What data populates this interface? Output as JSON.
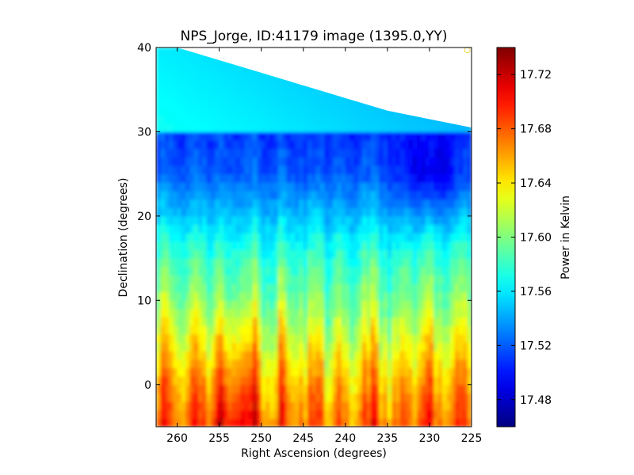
{
  "chart_data": {
    "type": "heatmap",
    "title": "NPS_Jorge, ID:41179 image (1395.0,YY)",
    "xlabel": "Right Ascension (degrees)",
    "ylabel": "Declination (degrees)",
    "xlim": [
      262.5,
      225
    ],
    "ylim": [
      -5,
      40
    ],
    "x_reversed": true,
    "x_ticks": [
      "260",
      "255",
      "250",
      "245",
      "240",
      "235",
      "230",
      "225"
    ],
    "y_ticks": [
      "0",
      "10",
      "20",
      "30",
      "40"
    ],
    "x_tick_values": [
      260,
      255,
      250,
      245,
      240,
      235,
      230,
      225
    ],
    "y_tick_values": [
      0,
      10,
      20,
      30,
      40
    ],
    "colormap": "jet",
    "colorbar": {
      "label": "Power in Kelvin",
      "min": 17.46,
      "max": 17.74,
      "ticks": [
        "17.48",
        "17.52",
        "17.56",
        "17.60",
        "17.64",
        "17.68",
        "17.72"
      ],
      "tick_values": [
        17.48,
        17.52,
        17.56,
        17.6,
        17.64,
        17.68,
        17.72
      ]
    },
    "declination_profile": {
      "dec": [
        -5,
        0,
        5,
        10,
        15,
        20,
        25,
        30,
        35,
        40
      ],
      "power": [
        17.68,
        17.66,
        17.63,
        17.6,
        17.58,
        17.55,
        17.52,
        17.51,
        17.54,
        17.55
      ]
    },
    "coverage_upper_edge": {
      "ra": [
        262.5,
        260,
        255,
        250,
        245,
        240,
        235,
        230,
        225
      ],
      "dec": [
        40.5,
        40,
        38.5,
        37,
        35.5,
        34,
        32.5,
        31.5,
        30.5
      ]
    },
    "marker": {
      "ra": 225.5,
      "dec": 39.7,
      "color": "#e8d84a"
    }
  }
}
